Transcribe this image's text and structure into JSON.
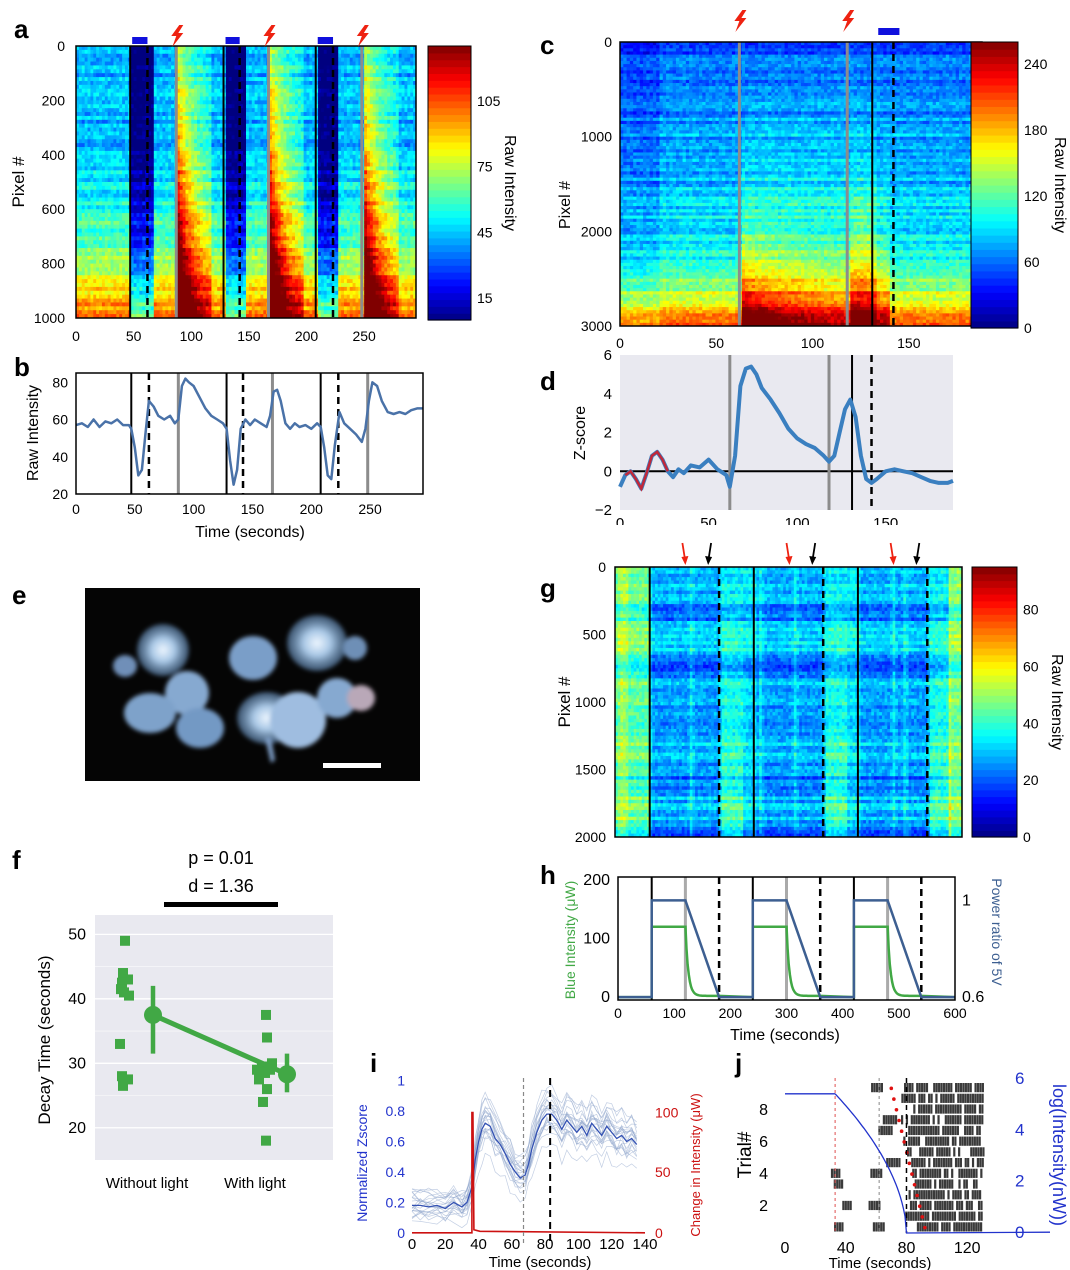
{
  "colors": {
    "blue_stim": "#1010dd",
    "red_stim": "#ee2211",
    "trace": "#4a72a8",
    "green": "#41a845",
    "grey_bg": "#e9e9f0",
    "gray_line": "#8c8c8c",
    "zblue": "#3a7fc0",
    "zred": "#c0283a"
  },
  "panel_letters": {
    "a": "a",
    "b": "b",
    "c": "c",
    "d": "d",
    "e": "e",
    "f": "f",
    "g": "g",
    "h": "h",
    "i": "i",
    "j": "j"
  },
  "chart_data": [
    {
      "id": "a",
      "type": "heatmap",
      "ylabel": "Pixel #",
      "xticks": [
        "0",
        "50",
        "100",
        "150",
        "200",
        "250"
      ],
      "yticks": [
        "0",
        "200",
        "400",
        "600",
        "800",
        "1000"
      ],
      "xlim": [
        0,
        295
      ],
      "ylim": [
        0,
        1000
      ],
      "colorbar_label": "Raw Intensity",
      "colorbar_ticks": [
        "105",
        "75",
        "45",
        "15"
      ],
      "colorbar_range": [
        5,
        130
      ],
      "light_on": [
        47,
        128,
        208
      ],
      "light_off": [
        62,
        142,
        223
      ],
      "stim": [
        87,
        167,
        248
      ]
    },
    {
      "id": "b",
      "type": "line",
      "xlabel": "Time (seconds)",
      "ylabel": "Raw Intensity",
      "xticks": [
        "0",
        "50",
        "100",
        "150",
        "200",
        "250"
      ],
      "yticks": [
        "20",
        "40",
        "60",
        "80"
      ],
      "xlim": [
        0,
        295
      ],
      "ylim": [
        20,
        85
      ],
      "x": [
        0,
        5,
        10,
        15,
        20,
        25,
        30,
        35,
        40,
        45,
        47,
        50,
        53,
        56,
        59,
        62,
        66,
        70,
        75,
        80,
        84,
        87,
        90,
        93,
        96,
        100,
        105,
        110,
        115,
        120,
        125,
        128,
        131,
        134,
        137,
        140,
        144,
        148,
        152,
        157,
        162,
        165,
        168,
        171,
        174,
        178,
        182,
        186,
        190,
        195,
        200,
        205,
        208,
        211,
        214,
        217,
        220,
        224,
        228,
        233,
        238,
        243,
        246,
        249,
        252,
        256,
        260,
        265,
        270,
        275,
        280,
        285,
        290,
        295
      ],
      "y": [
        57,
        58,
        56,
        60,
        56,
        59,
        58,
        60,
        57,
        57,
        55,
        45,
        30,
        33,
        52,
        70,
        67,
        62,
        60,
        62,
        58,
        60,
        78,
        82,
        80,
        78,
        72,
        66,
        62,
        60,
        58,
        55,
        38,
        25,
        33,
        55,
        60,
        57,
        60,
        58,
        56,
        62,
        75,
        76,
        70,
        58,
        55,
        58,
        56,
        57,
        55,
        58,
        56,
        45,
        30,
        28,
        46,
        64,
        58,
        55,
        52,
        48,
        55,
        70,
        80,
        78,
        70,
        64,
        63,
        64,
        63,
        65,
        66,
        66
      ]
    },
    {
      "id": "c",
      "type": "heatmap",
      "ylabel": "Pixel #",
      "xticks": [
        "0",
        "50",
        "100",
        "150"
      ],
      "yticks": [
        "0",
        "1000",
        "2000",
        "3000"
      ],
      "xlim": [
        0,
        188
      ],
      "ylim": [
        0,
        3000
      ],
      "colorbar_label": "Raw Intensity",
      "colorbar_ticks": [
        "240",
        "180",
        "120",
        "60",
        "0"
      ],
      "colorbar_range": [
        0,
        260
      ],
      "stim": [
        62,
        118
      ],
      "light_on": [
        131
      ],
      "light_off": [
        142
      ]
    },
    {
      "id": "d",
      "type": "line",
      "ylabel": "Z-score",
      "xticks": [
        "0",
        "50",
        "100",
        "150"
      ],
      "yticks": [
        "−2",
        "0",
        "2",
        "4",
        "6"
      ],
      "xlim": [
        0,
        188
      ],
      "ylim": [
        -2,
        6
      ],
      "x": [
        0,
        3,
        6,
        9,
        12,
        15,
        18,
        21,
        24,
        27,
        30,
        33,
        36,
        40,
        45,
        50,
        55,
        60,
        62,
        65,
        68,
        71,
        74,
        77,
        80,
        85,
        90,
        95,
        100,
        105,
        110,
        115,
        118,
        121,
        124,
        127,
        130,
        133,
        136,
        139,
        142,
        145,
        150,
        155,
        160,
        165,
        170,
        175,
        180,
        185,
        188
      ],
      "y": [
        -0.8,
        -0.2,
        0.0,
        -0.4,
        -0.9,
        -0.1,
        0.8,
        1.0,
        0.6,
        0.0,
        -0.3,
        0.1,
        -0.1,
        0.3,
        0.2,
        0.6,
        0.1,
        -0.2,
        -0.8,
        0.8,
        4.4,
        5.3,
        5.4,
        5.0,
        4.3,
        3.7,
        3.0,
        2.2,
        1.7,
        1.4,
        1.2,
        0.8,
        0.5,
        0.8,
        2.0,
        3.2,
        3.7,
        2.8,
        0.8,
        -0.4,
        -0.6,
        -0.4,
        0.0,
        0.1,
        0.0,
        -0.1,
        -0.3,
        -0.5,
        -0.6,
        -0.6,
        -0.5
      ],
      "highlight_range": [
        3,
        27
      ],
      "stim": [
        62,
        118
      ],
      "light_on": [
        131
      ],
      "light_off": [
        142
      ]
    },
    {
      "id": "f",
      "type": "scatter",
      "ylabel": "Decay Time (seconds)",
      "categories": [
        "Without light",
        "With light"
      ],
      "yticks": [
        "20",
        "30",
        "40",
        "50"
      ],
      "ylim": [
        15,
        53
      ],
      "annotation_p": "p = 0.01",
      "annotation_d": "d = 1.36",
      "without_light": [
        49,
        44,
        43,
        42.5,
        41.5,
        41,
        40.5,
        33,
        28,
        27.5,
        26.5
      ],
      "with_light": [
        37.5,
        34,
        30,
        29.5,
        29,
        29,
        28.5,
        27.5,
        26,
        24,
        18
      ],
      "means": [
        37.5,
        28.3
      ],
      "ci_low": [
        31.5,
        25.5
      ],
      "ci_high": [
        42,
        31.5
      ]
    },
    {
      "id": "g",
      "type": "heatmap",
      "ylabel": "Pixel #",
      "yticks": [
        "0",
        "500",
        "1000",
        "1500",
        "2000"
      ],
      "xlim": [
        0,
        600
      ],
      "ylim": [
        0,
        2000
      ],
      "colorbar_label": "Raw Intensity",
      "colorbar_ticks": [
        "80",
        "60",
        "40",
        "20",
        "0"
      ],
      "colorbar_range": [
        0,
        95
      ],
      "light_on": [
        60,
        240,
        420
      ],
      "light_off": [
        180,
        360,
        540
      ],
      "red_arrows": [
        120,
        300,
        480
      ],
      "black_arrows": [
        180,
        360,
        540
      ]
    },
    {
      "id": "h",
      "type": "line",
      "xlabel": "Time (seconds)",
      "ylabel": "Blue Intensity (μW)",
      "ylabel_right": "Power ratio of 5V",
      "xticks": [
        "0",
        "100",
        "200",
        "300",
        "400",
        "500",
        "600"
      ],
      "yticks": [
        "0",
        "100",
        "200"
      ],
      "yticks_right": [
        "1",
        "0.6"
      ],
      "xlim": [
        0,
        600
      ],
      "ylim": [
        -5,
        205
      ],
      "light_on": [
        60,
        240,
        420
      ],
      "stim": [
        120,
        300,
        480
      ],
      "light_off": [
        180,
        360,
        540
      ],
      "green_level": 120,
      "blue_level": 165
    },
    {
      "id": "i",
      "type": "line",
      "xlabel": "Time (seconds)",
      "ylabel": "Normalized Zscore",
      "ylabel_right": "Change in Intensity (μW)",
      "xticks": [
        "0",
        "20",
        "40",
        "60",
        "80",
        "100",
        "120",
        "140"
      ],
      "yticks": [
        "0",
        "0.2",
        "0.4",
        "0.6",
        "0.8",
        "1"
      ],
      "yticks_right": [
        "0",
        "50",
        "100"
      ],
      "xlim": [
        0,
        140
      ],
      "ylim": [
        0,
        1
      ],
      "x": [
        0,
        5,
        10,
        15,
        20,
        25,
        30,
        33,
        36,
        38,
        40,
        42,
        44,
        47,
        50,
        53,
        56,
        59,
        62,
        65,
        68,
        70,
        72,
        75,
        78,
        81,
        84,
        87,
        90,
        93,
        96,
        99,
        102,
        105,
        108,
        111,
        114,
        117,
        120,
        123,
        126,
        129,
        132,
        135
      ],
      "y": [
        0.18,
        0.18,
        0.17,
        0.18,
        0.16,
        0.2,
        0.17,
        0.2,
        0.3,
        0.48,
        0.6,
        0.68,
        0.72,
        0.7,
        0.62,
        0.58,
        0.52,
        0.45,
        0.4,
        0.36,
        0.38,
        0.45,
        0.55,
        0.66,
        0.74,
        0.78,
        0.78,
        0.74,
        0.68,
        0.74,
        0.7,
        0.66,
        0.7,
        0.64,
        0.72,
        0.68,
        0.64,
        0.7,
        0.66,
        0.62,
        0.64,
        0.6,
        0.62,
        0.58
      ],
      "stim_time": 36,
      "gray_dashed": 67,
      "black_dashed": 83
    },
    {
      "id": "j",
      "type": "scatter",
      "xlabel": "Time (seconds)",
      "ylabel": "Trial#",
      "ylabel_right": "log(Intensity(nW))",
      "xticks": [
        "0",
        "40",
        "80",
        "120"
      ],
      "yticks": [
        "2",
        "4",
        "6",
        "8"
      ],
      "yticks_right": [
        "0",
        "2",
        "4",
        "6"
      ],
      "xlim": [
        0,
        135
      ],
      "ylim": [
        0,
        10
      ]
    }
  ]
}
